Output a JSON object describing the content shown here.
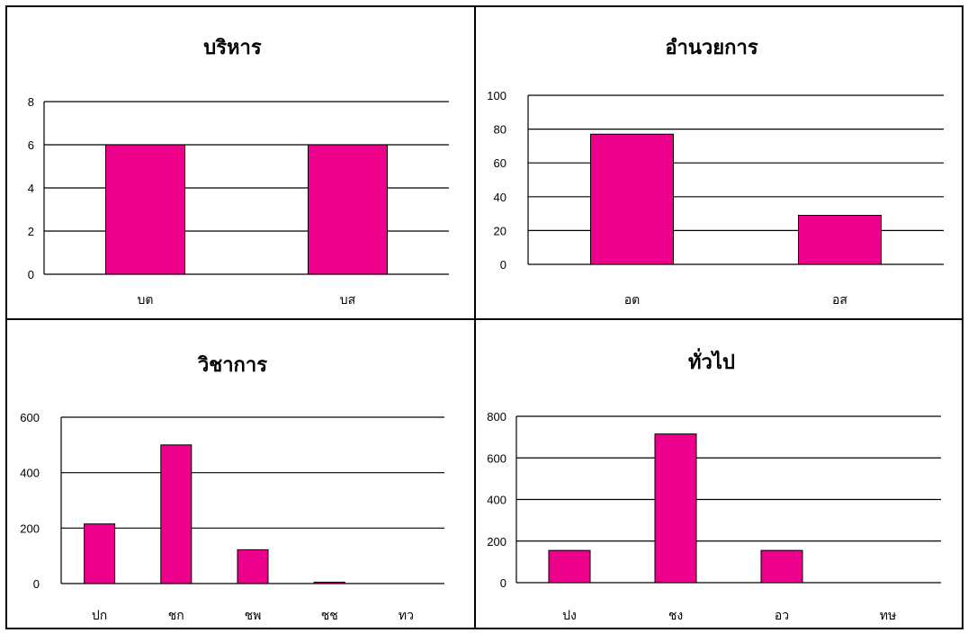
{
  "chart_data": [
    {
      "type": "bar",
      "title": "บริหาร",
      "categories": [
        "บต",
        "บส"
      ],
      "values": [
        6,
        6
      ],
      "ylim": [
        0,
        8
      ],
      "yticks": [
        0,
        2,
        4,
        6,
        8
      ],
      "grid": true,
      "bar_color": "#EC008C"
    },
    {
      "type": "bar",
      "title": "อำนวยการ",
      "categories": [
        "อต",
        "อส"
      ],
      "values": [
        77,
        29
      ],
      "ylim": [
        0,
        100
      ],
      "yticks": [
        0,
        20,
        40,
        60,
        80,
        100
      ],
      "grid": true,
      "bar_color": "#EC008C"
    },
    {
      "type": "bar",
      "title": "วิชาการ",
      "categories": [
        "ปก",
        "ชก",
        "ชพ",
        "ชช",
        "ทว"
      ],
      "values": [
        215,
        500,
        122,
        5,
        0
      ],
      "ylim": [
        0,
        600
      ],
      "yticks": [
        0,
        200,
        400,
        600
      ],
      "grid": true,
      "bar_color": "#EC008C"
    },
    {
      "type": "bar",
      "title": "ทั่วไป",
      "categories": [
        "ปง",
        "ชง",
        "อว",
        "ทษ"
      ],
      "values": [
        155,
        715,
        155,
        0
      ],
      "ylim": [
        0,
        800
      ],
      "yticks": [
        0,
        200,
        400,
        600,
        800
      ],
      "grid": true,
      "bar_color": "#EC008C"
    }
  ]
}
